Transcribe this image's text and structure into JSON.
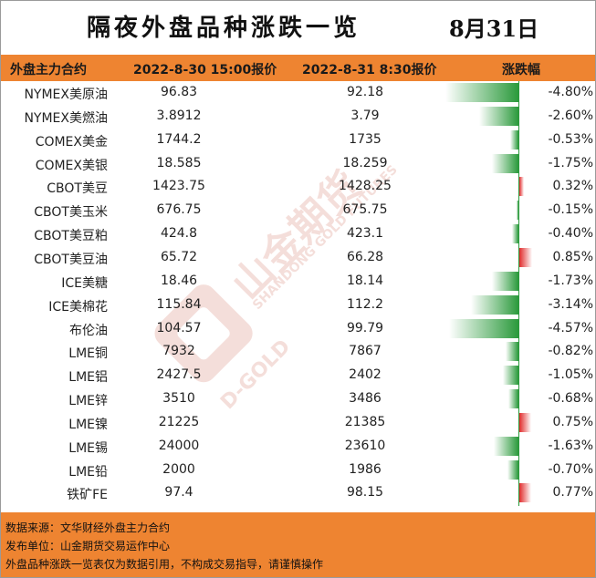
{
  "title": "隔夜外盘品种涨跌一览",
  "date": "8月31日",
  "headers": {
    "name": "外盘主力合约",
    "price1": "2022-8-30 15:00报价",
    "price2": "2022-8-31 8:30报价",
    "change": "涨跌幅"
  },
  "rows": [
    {
      "name": "NYMEX美原油",
      "p1": "96.83",
      "p2": "92.18",
      "pct": "-4.80%",
      "v": -4.8
    },
    {
      "name": "NYMEX美燃油",
      "p1": "3.8912",
      "p2": "3.79",
      "pct": "-2.60%",
      "v": -2.6
    },
    {
      "name": "COMEX美金",
      "p1": "1744.2",
      "p2": "1735",
      "pct": "-0.53%",
      "v": -0.53
    },
    {
      "name": "COMEX美银",
      "p1": "18.585",
      "p2": "18.259",
      "pct": "-1.75%",
      "v": -1.75
    },
    {
      "name": "CBOT美豆",
      "p1": "1423.75",
      "p2": "1428.25",
      "pct": "0.32%",
      "v": 0.32
    },
    {
      "name": "CBOT美玉米",
      "p1": "676.75",
      "p2": "675.75",
      "pct": "-0.15%",
      "v": -0.15
    },
    {
      "name": "CBOT美豆粕",
      "p1": "424.8",
      "p2": "423.1",
      "pct": "-0.40%",
      "v": -0.4
    },
    {
      "name": "CBOT美豆油",
      "p1": "65.72",
      "p2": "66.28",
      "pct": "0.85%",
      "v": 0.85
    },
    {
      "name": "ICE美糖",
      "p1": "18.46",
      "p2": "18.14",
      "pct": "-1.73%",
      "v": -1.73
    },
    {
      "name": "ICE美棉花",
      "p1": "115.84",
      "p2": "112.2",
      "pct": "-3.14%",
      "v": -3.14
    },
    {
      "name": "布伦油",
      "p1": "104.57",
      "p2": "99.79",
      "pct": "-4.57%",
      "v": -4.57
    },
    {
      "name": "LME铜",
      "p1": "7932",
      "p2": "7867",
      "pct": "-0.82%",
      "v": -0.82
    },
    {
      "name": "LME铝",
      "p1": "2427.5",
      "p2": "2402",
      "pct": "-1.05%",
      "v": -1.05
    },
    {
      "name": "LME锌",
      "p1": "3510",
      "p2": "3486",
      "pct": "-0.68%",
      "v": -0.68
    },
    {
      "name": "LME镍",
      "p1": "21225",
      "p2": "21385",
      "pct": "0.75%",
      "v": 0.75
    },
    {
      "name": "LME锡",
      "p1": "24000",
      "p2": "23610",
      "pct": "-1.63%",
      "v": -1.63
    },
    {
      "name": "LME铅",
      "p1": "2000",
      "p2": "1986",
      "pct": "-0.70%",
      "v": -0.7
    },
    {
      "name": "铁矿FE",
      "p1": "97.4",
      "p2": "98.15",
      "pct": "0.77%",
      "v": 0.77
    }
  ],
  "footer": {
    "source": "数据来源：文华财经外盘主力合约",
    "publisher": "发布单位：山金期货交易运作中心",
    "disclaimer": "外盘品种涨跌一览表仅为数据引用，不构成交易指导，请谨慎操作"
  },
  "watermark": {
    "text": "山金期货",
    "sub": "SHANDONG GOLD FUTURES",
    "logo_text": "D-GOLD"
  },
  "colors": {
    "header_bg": "#ee8431",
    "negative": "#2b9a3c",
    "positive": "#e02b2b"
  }
}
